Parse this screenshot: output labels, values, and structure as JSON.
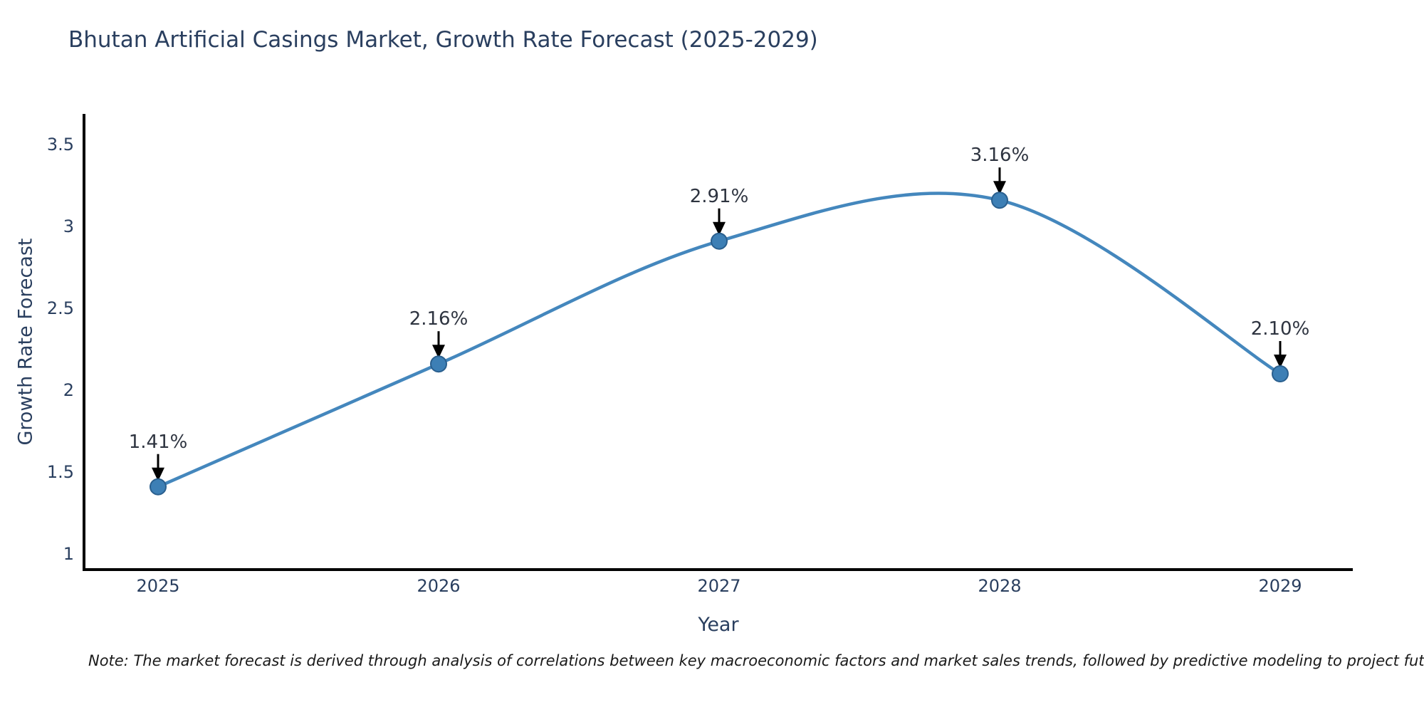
{
  "chart_data": {
    "type": "line",
    "title": "Bhutan Artificial Casings Market, Growth Rate Forecast (2025-2029)",
    "xlabel": "Year",
    "ylabel": "Growth Rate Forecast",
    "x": [
      2025,
      2026,
      2027,
      2028,
      2029
    ],
    "values": [
      1.41,
      2.16,
      2.91,
      3.16,
      2.1
    ],
    "point_labels": [
      "1.41%",
      "2.16%",
      "2.91%",
      "3.16%",
      "2.10%"
    ],
    "yticks": [
      1,
      1.5,
      2,
      2.5,
      3,
      3.5
    ],
    "ylim": [
      1,
      3.5
    ],
    "line_shape": "spline",
    "grid": false,
    "legend": false,
    "annotations_have_arrows": true
  },
  "note": "Note: The market forecast is derived through analysis of correlations between key macroeconomic factors and market sales trends, followed by predictive modeling to project future sales",
  "colors": {
    "line": "#4487bd",
    "marker_fill": "#3d7fb5",
    "marker_edge": "#2a5f8e",
    "axis": "#000000",
    "arrow": "#000000",
    "text": "#2a3f5f"
  }
}
